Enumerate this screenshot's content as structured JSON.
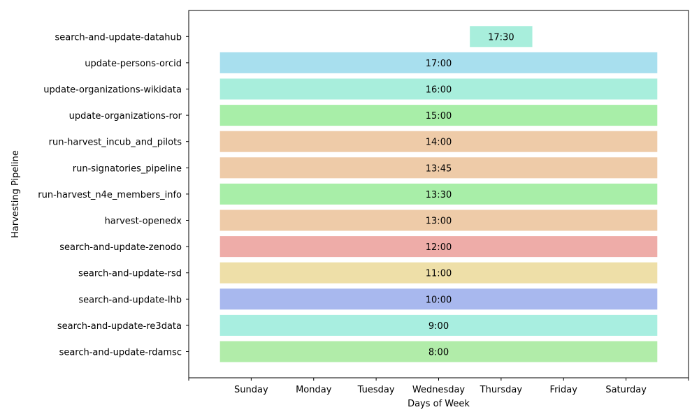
{
  "chart_data": {
    "type": "bar",
    "orientation": "horizontal",
    "xlabel": "Days of Week",
    "ylabel": "Harvesting Pipeline",
    "x_ticks": [
      "Sunday",
      "Monday",
      "Tuesday",
      "Wednesday",
      "Thursday",
      "Friday",
      "Saturday"
    ],
    "xlim": [
      -1,
      7
    ],
    "grid": false,
    "rows": [
      {
        "label": "search-and-update-rdamsc",
        "time": "8:00",
        "start": -0.5,
        "end": 6.5,
        "color": "#a3e99a"
      },
      {
        "label": "search-and-update-re3data",
        "time": "9:00",
        "start": -0.5,
        "end": 6.5,
        "color": "#99ebda"
      },
      {
        "label": "search-and-update-lhb",
        "time": "10:00",
        "start": -0.5,
        "end": 6.5,
        "color": "#99aceb"
      },
      {
        "label": "search-and-update-rsd",
        "time": "11:00",
        "start": -0.5,
        "end": 6.5,
        "color": "#ebd999"
      },
      {
        "label": "search-and-update-zenodo",
        "time": "12:00",
        "start": -0.5,
        "end": 6.5,
        "color": "#eb9e99"
      },
      {
        "label": "harvest-openedx",
        "time": "13:00",
        "start": -0.5,
        "end": 6.5,
        "color": "#ebc299"
      },
      {
        "label": "run-harvest_n4e_members_info",
        "time": "13:30",
        "start": -0.5,
        "end": 6.5,
        "color": "#99eb99"
      },
      {
        "label": "run-signatories_pipeline",
        "time": "13:45",
        "start": -0.5,
        "end": 6.5,
        "color": "#ebc299"
      },
      {
        "label": "run-harvest_incub_and_pilots",
        "time": "14:00",
        "start": -0.5,
        "end": 6.5,
        "color": "#ebc299"
      },
      {
        "label": "update-organizations-ror",
        "time": "15:00",
        "start": -0.5,
        "end": 6.5,
        "color": "#99eb99"
      },
      {
        "label": "update-organizations-wikidata",
        "time": "16:00",
        "start": -0.5,
        "end": 6.5,
        "color": "#99ebd6"
      },
      {
        "label": "update-persons-orcid",
        "time": "17:00",
        "start": -0.5,
        "end": 6.5,
        "color": "#99d9eb"
      },
      {
        "label": "search-and-update-datahub",
        "time": "17:30",
        "start": 3.5,
        "end": 4.5,
        "color": "#99ebd6"
      }
    ]
  }
}
